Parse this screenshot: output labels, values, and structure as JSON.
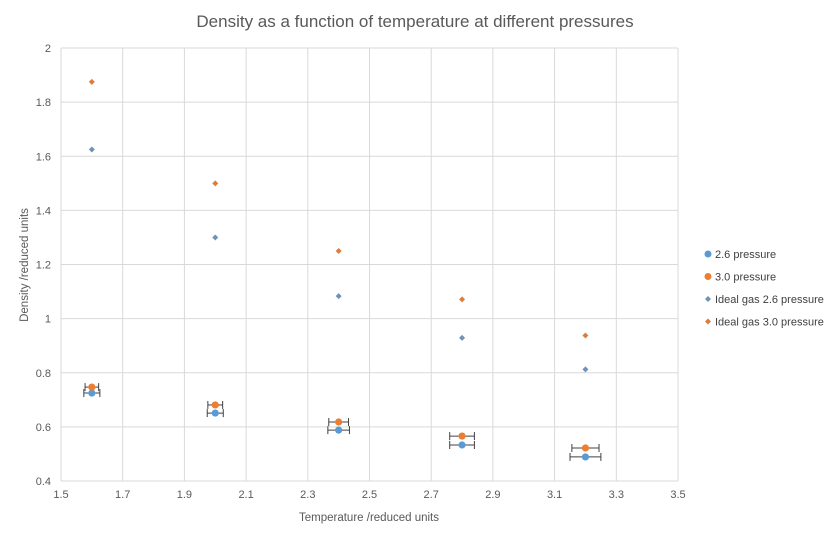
{
  "chart_data": {
    "type": "scatter",
    "title": "Density as a function of temperature at different pressures",
    "xlabel": "Temperature /reduced units",
    "ylabel": "Density /reduced units",
    "xlim": [
      1.5,
      3.5
    ],
    "ylim": [
      0.4,
      2
    ],
    "xticks": [
      "1.5",
      "1.7",
      "1.9",
      "2.1",
      "2.3",
      "2.5",
      "2.7",
      "2.9",
      "3.1",
      "3.3",
      "3.5"
    ],
    "yticks": [
      "0.4",
      "0.6",
      "0.8",
      "1",
      "1.2",
      "1.4",
      "1.6",
      "1.8",
      "2"
    ],
    "grid": true,
    "legend_position": "right",
    "series": [
      {
        "name": "2.6 pressure",
        "marker": "circle",
        "color": "#5b9bd5",
        "x": [
          1.6,
          2.0,
          2.4,
          2.8,
          3.2
        ],
        "y": [
          0.725,
          0.651,
          0.588,
          0.533,
          0.489
        ],
        "xerr": [
          0.026,
          0.026,
          0.035,
          0.04,
          0.05
        ]
      },
      {
        "name": "3.0 pressure",
        "marker": "circle",
        "color": "#ed7d31",
        "x": [
          1.6,
          2.0,
          2.4,
          2.8,
          3.2
        ],
        "y": [
          0.747,
          0.681,
          0.618,
          0.566,
          0.522
        ],
        "xerr": [
          0.022,
          0.024,
          0.032,
          0.04,
          0.044
        ]
      },
      {
        "name": "Ideal gas 2.6 pressure",
        "marker": "diamond",
        "color": "#6f93b8",
        "x": [
          1.6,
          2.0,
          2.4,
          2.8,
          3.2
        ],
        "y": [
          1.625,
          1.3,
          1.083,
          0.929,
          0.8125
        ]
      },
      {
        "name": "Ideal gas 3.0 pressure",
        "marker": "diamond",
        "color": "#e07b39",
        "x": [
          1.6,
          2.0,
          2.4,
          2.8,
          3.2
        ],
        "y": [
          1.875,
          1.5,
          1.25,
          1.071,
          0.9375
        ]
      }
    ]
  }
}
